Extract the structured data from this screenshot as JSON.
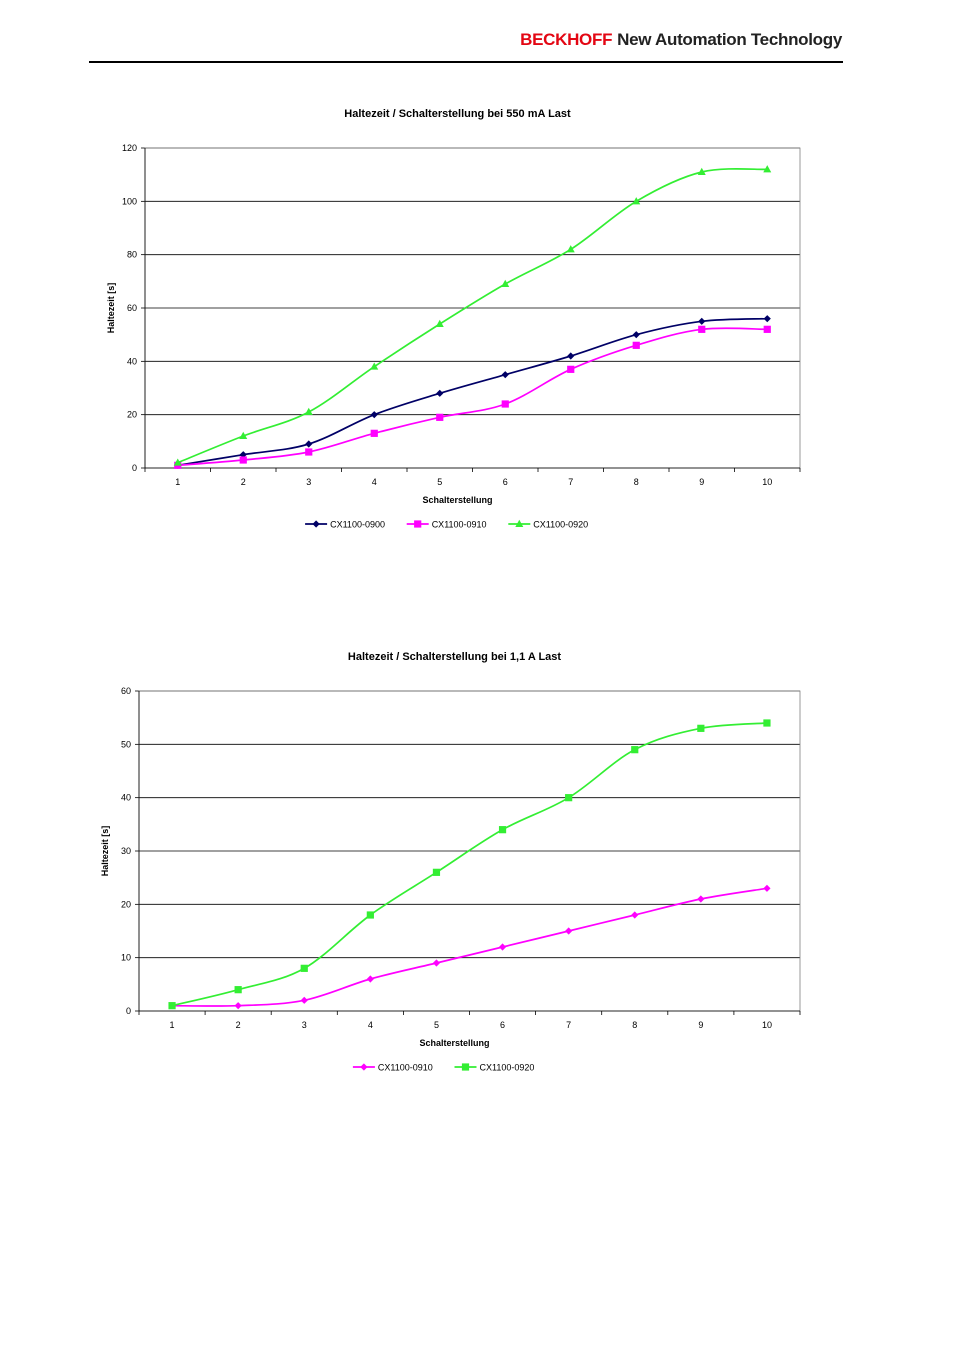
{
  "header": {
    "logo": "BECKHOFF",
    "tagline": "New Automation Technology",
    "colors": {
      "logo": "#e30613",
      "tagline": "#222222"
    }
  },
  "chart_data": [
    {
      "type": "line",
      "title": "Haltezeit / Schalterstellung bei 550 mA Last",
      "xlabel": "Schalterstellung",
      "ylabel": "Haltezeit [s]",
      "categories": [
        "1",
        "2",
        "3",
        "4",
        "5",
        "6",
        "7",
        "8",
        "9",
        "10"
      ],
      "ylim": [
        0,
        120
      ],
      "yticks": [
        0,
        20,
        40,
        60,
        80,
        100,
        120
      ],
      "grid": true,
      "legend": "bottom",
      "series": [
        {
          "name": "CX1100-0900",
          "color": "#000066",
          "marker": "diamond",
          "values": [
            1,
            5,
            9,
            20,
            28,
            35,
            42,
            50,
            55,
            56
          ]
        },
        {
          "name": "CX1100-0910",
          "color": "#ff00ff",
          "marker": "square",
          "values": [
            1,
            3,
            6,
            13,
            19,
            24,
            37,
            46,
            52,
            52
          ]
        },
        {
          "name": "CX1100-0920",
          "color": "#33ee33",
          "marker": "triangle",
          "values": [
            2,
            12,
            21,
            38,
            54,
            69,
            82,
            100,
            111,
            112
          ]
        }
      ]
    },
    {
      "type": "line",
      "title": "Haltezeit / Schalterstellung bei 1,1 A Last",
      "xlabel": "Schalterstellung",
      "ylabel": "Haltezeit [s]",
      "categories": [
        "1",
        "2",
        "3",
        "4",
        "5",
        "6",
        "7",
        "8",
        "9",
        "10"
      ],
      "ylim": [
        0,
        60
      ],
      "yticks": [
        0,
        10,
        20,
        30,
        40,
        50,
        60
      ],
      "grid": true,
      "legend": "bottom",
      "series": [
        {
          "name": "CX1100-0910",
          "color": "#ff00ff",
          "marker": "diamond",
          "values": [
            1,
            1,
            2,
            6,
            9,
            12,
            15,
            18,
            21,
            23
          ]
        },
        {
          "name": "CX1100-0920",
          "color": "#33ee33",
          "marker": "square",
          "values": [
            1,
            4,
            8,
            18,
            26,
            34,
            40,
            49,
            53,
            54
          ]
        }
      ]
    }
  ]
}
